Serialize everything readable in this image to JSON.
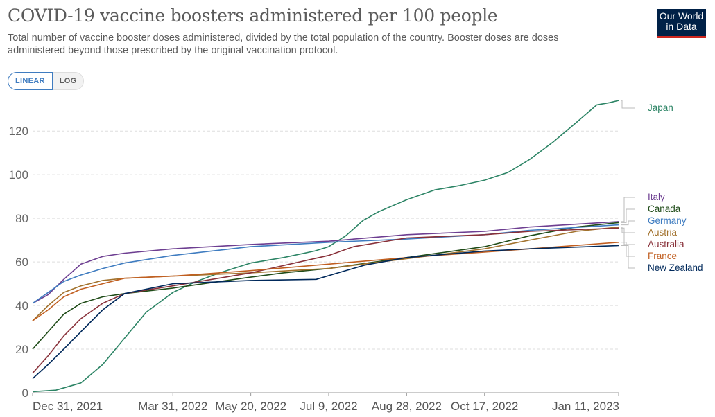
{
  "title": "COVID-19 vaccine boosters administered per 100 people",
  "subtitle": "Total number of vaccine booster doses administered, divided by the total population of the country. Booster doses are doses administered beyond those prescribed by the original vaccination protocol.",
  "logo": {
    "line1": "Our World",
    "line2": "in Data"
  },
  "scale_toggle": {
    "linear": "LINEAR",
    "log": "LOG",
    "active": "LINEAR"
  },
  "chart_data": {
    "type": "line",
    "title": "COVID-19 vaccine boosters administered per 100 people",
    "xlabel": "",
    "ylabel": "",
    "ylim": [
      0,
      135
    ],
    "yticks": [
      0,
      20,
      40,
      60,
      80,
      100,
      120
    ],
    "xlim": [
      "2021-12-31",
      "2023-01-11"
    ],
    "xticks": [
      "2021-12-31",
      "2022-03-31",
      "2022-05-20",
      "2022-07-09",
      "2022-08-28",
      "2022-10-17",
      "2023-01-11"
    ],
    "xtick_labels": [
      "Dec 31, 2021",
      "Mar 31, 2022",
      "May 20, 2022",
      "Jul 9, 2022",
      "Aug 28, 2022",
      "Oct 17, 2022",
      "Jan 11, 2023"
    ],
    "grid": "horizontal dashed",
    "legend": "right",
    "series": [
      {
        "name": "Japan",
        "color": "#2c8465",
        "points": [
          [
            "2021-12-31",
            0.5
          ],
          [
            "2022-01-15",
            1.2
          ],
          [
            "2022-01-31",
            4.5
          ],
          [
            "2022-02-14",
            13
          ],
          [
            "2022-02-28",
            25
          ],
          [
            "2022-03-14",
            37
          ],
          [
            "2022-03-31",
            46
          ],
          [
            "2022-04-15",
            51
          ],
          [
            "2022-04-30",
            55
          ],
          [
            "2022-05-20",
            59.5
          ],
          [
            "2022-06-10",
            62
          ],
          [
            "2022-06-30",
            65
          ],
          [
            "2022-07-09",
            67
          ],
          [
            "2022-07-20",
            72
          ],
          [
            "2022-07-31",
            79
          ],
          [
            "2022-08-10",
            83
          ],
          [
            "2022-08-28",
            88.5
          ],
          [
            "2022-09-15",
            93
          ],
          [
            "2022-10-01",
            95
          ],
          [
            "2022-10-17",
            97.5
          ],
          [
            "2022-11-01",
            101
          ],
          [
            "2022-11-15",
            107
          ],
          [
            "2022-11-30",
            115
          ],
          [
            "2022-12-15",
            124
          ],
          [
            "2022-12-28",
            132
          ],
          [
            "2023-01-05",
            133
          ],
          [
            "2023-01-11",
            134
          ]
        ]
      },
      {
        "name": "Italy",
        "color": "#6d3e91",
        "points": [
          [
            "2021-12-31",
            41
          ],
          [
            "2022-01-10",
            45
          ],
          [
            "2022-01-20",
            52
          ],
          [
            "2022-01-31",
            59
          ],
          [
            "2022-02-14",
            62.5
          ],
          [
            "2022-02-28",
            64
          ],
          [
            "2022-03-31",
            66
          ],
          [
            "2022-05-20",
            68
          ],
          [
            "2022-07-09",
            69.5
          ],
          [
            "2022-08-28",
            72.5
          ],
          [
            "2022-10-17",
            74
          ],
          [
            "2022-11-15",
            76
          ],
          [
            "2023-01-11",
            78.5
          ]
        ]
      },
      {
        "name": "Canada",
        "color": "#1f4b18",
        "points": [
          [
            "2021-12-31",
            20
          ],
          [
            "2022-01-10",
            28
          ],
          [
            "2022-01-20",
            36
          ],
          [
            "2022-01-31",
            41
          ],
          [
            "2022-02-14",
            44
          ],
          [
            "2022-02-28",
            45.5
          ],
          [
            "2022-03-31",
            48
          ],
          [
            "2022-05-20",
            53
          ],
          [
            "2022-06-10",
            55
          ],
          [
            "2022-07-09",
            57
          ],
          [
            "2022-08-28",
            62
          ],
          [
            "2022-10-17",
            67
          ],
          [
            "2022-11-15",
            72
          ],
          [
            "2022-12-15",
            76
          ],
          [
            "2023-01-11",
            78
          ]
        ]
      },
      {
        "name": "Germany",
        "color": "#3f7cc0",
        "points": [
          [
            "2021-12-31",
            41
          ],
          [
            "2022-01-10",
            46
          ],
          [
            "2022-01-20",
            51
          ],
          [
            "2022-01-31",
            54
          ],
          [
            "2022-02-14",
            57
          ],
          [
            "2022-02-28",
            59.5
          ],
          [
            "2022-03-31",
            63
          ],
          [
            "2022-05-20",
            67
          ],
          [
            "2022-07-09",
            69
          ],
          [
            "2022-08-28",
            70.5
          ],
          [
            "2022-10-17",
            72.5
          ],
          [
            "2022-11-15",
            74.5
          ],
          [
            "2023-01-11",
            77
          ]
        ]
      },
      {
        "name": "Austria",
        "color": "#a2722d",
        "points": [
          [
            "2021-12-31",
            33
          ],
          [
            "2022-01-10",
            40
          ],
          [
            "2022-01-20",
            46
          ],
          [
            "2022-01-31",
            49
          ],
          [
            "2022-02-14",
            51.5
          ],
          [
            "2022-02-28",
            52.5
          ],
          [
            "2022-03-31",
            53.5
          ],
          [
            "2022-05-20",
            55
          ],
          [
            "2022-07-09",
            57
          ],
          [
            "2022-08-28",
            61.5
          ],
          [
            "2022-10-17",
            66
          ],
          [
            "2022-11-15",
            70
          ],
          [
            "2022-12-15",
            74
          ],
          [
            "2023-01-11",
            76
          ]
        ]
      },
      {
        "name": "Australia",
        "color": "#883039",
        "points": [
          [
            "2021-12-31",
            9
          ],
          [
            "2022-01-10",
            17
          ],
          [
            "2022-01-20",
            26
          ],
          [
            "2022-01-31",
            34
          ],
          [
            "2022-02-14",
            41
          ],
          [
            "2022-02-28",
            45.5
          ],
          [
            "2022-03-31",
            49
          ],
          [
            "2022-05-20",
            55
          ],
          [
            "2022-07-09",
            63
          ],
          [
            "2022-07-25",
            67
          ],
          [
            "2022-08-28",
            71
          ],
          [
            "2022-10-17",
            72.5
          ],
          [
            "2022-11-15",
            74
          ],
          [
            "2023-01-11",
            75.5
          ]
        ]
      },
      {
        "name": "France",
        "color": "#c15f21",
        "points": [
          [
            "2021-12-31",
            33
          ],
          [
            "2022-01-10",
            38
          ],
          [
            "2022-01-20",
            44
          ],
          [
            "2022-01-31",
            47.5
          ],
          [
            "2022-02-14",
            50
          ],
          [
            "2022-02-28",
            52.5
          ],
          [
            "2022-03-31",
            53.5
          ],
          [
            "2022-05-20",
            56
          ],
          [
            "2022-07-09",
            59
          ],
          [
            "2022-08-28",
            62
          ],
          [
            "2022-10-17",
            64.5
          ],
          [
            "2022-11-15",
            66
          ],
          [
            "2023-01-11",
            69
          ]
        ]
      },
      {
        "name": "New Zealand",
        "color": "#00295b",
        "points": [
          [
            "2021-12-31",
            6.5
          ],
          [
            "2022-01-10",
            13
          ],
          [
            "2022-01-20",
            20
          ],
          [
            "2022-01-31",
            28
          ],
          [
            "2022-02-14",
            38
          ],
          [
            "2022-02-28",
            45.5
          ],
          [
            "2022-03-31",
            50
          ],
          [
            "2022-05-20",
            51.5
          ],
          [
            "2022-07-01",
            52
          ],
          [
            "2022-07-15",
            55
          ],
          [
            "2022-08-01",
            58.5
          ],
          [
            "2022-08-28",
            62
          ],
          [
            "2022-10-17",
            65
          ],
          [
            "2022-11-15",
            66
          ],
          [
            "2023-01-11",
            67.5
          ]
        ]
      }
    ],
    "legend_order": [
      "Japan",
      "Italy",
      "Canada",
      "Germany",
      "Austria",
      "Australia",
      "France",
      "New Zealand"
    ]
  }
}
